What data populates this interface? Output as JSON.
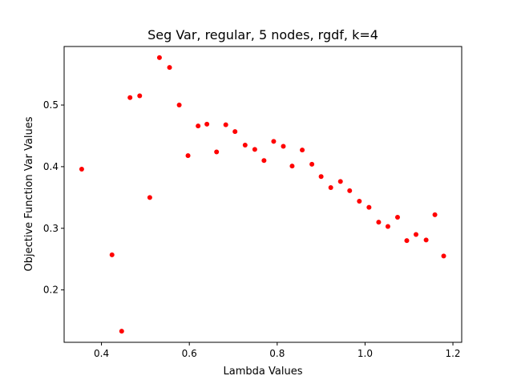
{
  "chart_data": {
    "type": "scatter",
    "title": "Seg Var, regular, 5 nodes, rgdf, k=4",
    "xlabel": "Lambda Values",
    "ylabel": "Objective Function Var Values",
    "xlim": [
      0.315,
      1.22
    ],
    "ylim": [
      0.115,
      0.595
    ],
    "xticks": [
      0.4,
      0.6,
      0.8,
      1.0,
      1.2
    ],
    "xtick_labels": [
      "0.4",
      "0.6",
      "0.8",
      "1.0",
      "1.2"
    ],
    "yticks": [
      0.2,
      0.3,
      0.4,
      0.5
    ],
    "ytick_labels": [
      "0.2",
      "0.3",
      "0.4",
      "0.5"
    ],
    "grid": false,
    "marker_color": "#ff0000",
    "series": [
      {
        "x": [
          0.355,
          0.424,
          0.446,
          0.465,
          0.487,
          0.51,
          0.532,
          0.555,
          0.577,
          0.597,
          0.62,
          0.64,
          0.662,
          0.683,
          0.704,
          0.727,
          0.749,
          0.77,
          0.792,
          0.814,
          0.834,
          0.857,
          0.879,
          0.9,
          0.922,
          0.944,
          0.965,
          0.987,
          1.009,
          1.031,
          1.052,
          1.074,
          1.095,
          1.116,
          1.139,
          1.159,
          1.179
        ],
        "y": [
          0.396,
          0.257,
          0.133,
          0.512,
          0.515,
          0.35,
          0.577,
          0.561,
          0.5,
          0.418,
          0.466,
          0.469,
          0.424,
          0.468,
          0.457,
          0.435,
          0.428,
          0.41,
          0.441,
          0.433,
          0.401,
          0.427,
          0.404,
          0.384,
          0.366,
          0.376,
          0.361,
          0.344,
          0.334,
          0.31,
          0.303,
          0.318,
          0.28,
          0.29,
          0.281,
          0.322,
          0.255
        ]
      }
    ]
  }
}
